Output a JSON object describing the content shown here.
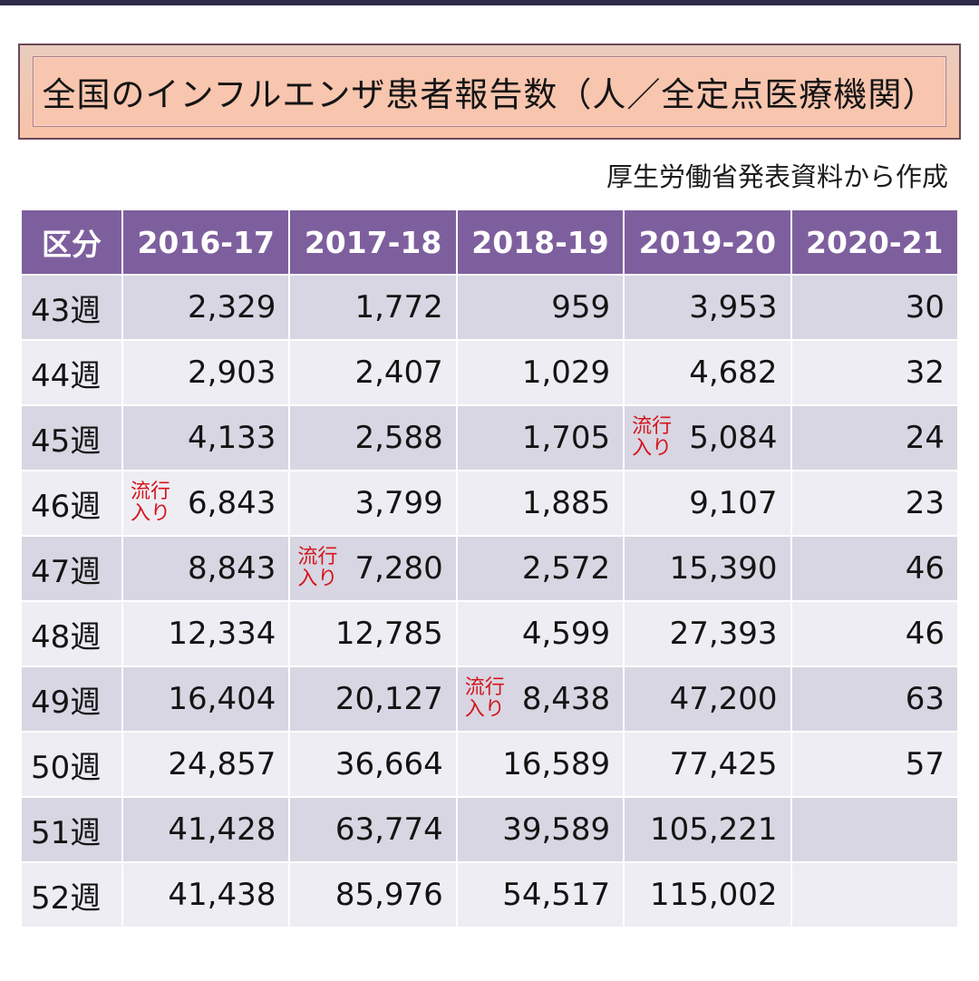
{
  "title": "全国のインフルエンザ患者報告数（人／全定点医療機関）",
  "source": "厚生労働省発表資料から作成",
  "onset_note": "流行入り",
  "colors": {
    "header_bg": "#7e5f9e",
    "header_text": "#ffffff",
    "row_dark": "#d8d6e2",
    "row_light": "#eeedf3",
    "note_red": "#d4141c",
    "title_bg": "#f8c5ae"
  },
  "table": {
    "headers": [
      "区分",
      "2016-17",
      "2017-18",
      "2018-19",
      "2019-20",
      "2020-21"
    ],
    "rows": [
      {
        "week": "43週",
        "values": [
          "2,329",
          "1,772",
          "959",
          "3,953",
          "30"
        ]
      },
      {
        "week": "44週",
        "values": [
          "2,903",
          "2,407",
          "1,029",
          "4,682",
          "32"
        ]
      },
      {
        "week": "45週",
        "values": [
          "4,133",
          "2,588",
          "1,705",
          "5,084",
          "24"
        ]
      },
      {
        "week": "46週",
        "values": [
          "6,843",
          "3,799",
          "1,885",
          "9,107",
          "23"
        ]
      },
      {
        "week": "47週",
        "values": [
          "8,843",
          "7,280",
          "2,572",
          "15,390",
          "46"
        ]
      },
      {
        "week": "48週",
        "values": [
          "12,334",
          "12,785",
          "4,599",
          "27,393",
          "46"
        ]
      },
      {
        "week": "49週",
        "values": [
          "16,404",
          "20,127",
          "8,438",
          "47,200",
          "63"
        ]
      },
      {
        "week": "50週",
        "values": [
          "24,857",
          "36,664",
          "16,589",
          "77,425",
          "57"
        ]
      },
      {
        "week": "51週",
        "values": [
          "41,428",
          "63,774",
          "39,589",
          "105,221",
          ""
        ]
      },
      {
        "week": "52週",
        "values": [
          "41,438",
          "85,976",
          "54,517",
          "115,002",
          ""
        ]
      }
    ],
    "onset_marks": [
      {
        "season": "2016-17",
        "week": "46週"
      },
      {
        "season": "2017-18",
        "week": "47週"
      },
      {
        "season": "2018-19",
        "week": "49週"
      },
      {
        "season": "2019-20",
        "week": "45週"
      }
    ]
  }
}
